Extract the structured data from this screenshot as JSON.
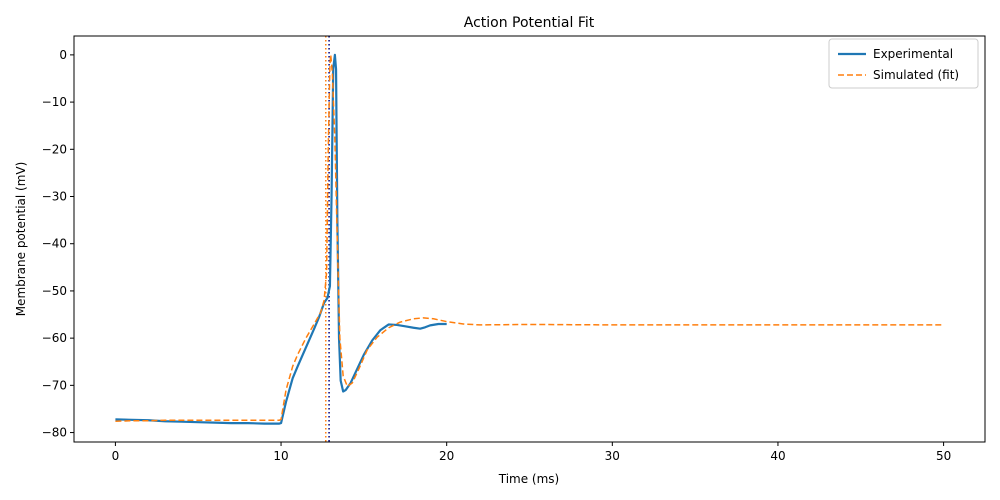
{
  "chart_data": {
    "type": "line",
    "title": "Action Potential Fit",
    "xlabel": "Time (ms)",
    "ylabel": "Membrane potential (mV)",
    "xlim": [
      -2.5,
      52.5
    ],
    "ylim": [
      -82,
      4
    ],
    "x_ticks": [
      0,
      10,
      20,
      30,
      40,
      50
    ],
    "y_ticks": [
      0,
      -10,
      -20,
      -30,
      -40,
      -50,
      -60,
      -70,
      -80
    ],
    "grid": false,
    "legend_position": "top-right",
    "series": [
      {
        "name": "Experimental",
        "color": "#1f77b4",
        "style": "solid",
        "points": [
          [
            0,
            -77.2
          ],
          [
            1,
            -77.3
          ],
          [
            2,
            -77.4
          ],
          [
            3,
            -77.6
          ],
          [
            4,
            -77.7
          ],
          [
            5,
            -77.8
          ],
          [
            6,
            -77.9
          ],
          [
            7,
            -78.0
          ],
          [
            8,
            -78.0
          ],
          [
            9,
            -78.1
          ],
          [
            9.9,
            -78.1
          ],
          [
            10,
            -78.0
          ],
          [
            10.3,
            -73.5
          ],
          [
            10.7,
            -68.5
          ],
          [
            11,
            -66.0
          ],
          [
            11.5,
            -62.0
          ],
          [
            12,
            -58.0
          ],
          [
            12.3,
            -55.5
          ],
          [
            12.6,
            -52.5
          ],
          [
            12.8,
            -51.5
          ],
          [
            12.95,
            -49.0
          ],
          [
            13.05,
            -30.0
          ],
          [
            13.15,
            -3.0
          ],
          [
            13.25,
            0.0
          ],
          [
            13.32,
            -3.0
          ],
          [
            13.4,
            -35.0
          ],
          [
            13.5,
            -60.0
          ],
          [
            13.6,
            -69.0
          ],
          [
            13.75,
            -71.3
          ],
          [
            13.9,
            -71.0
          ],
          [
            14.2,
            -69.5
          ],
          [
            14.6,
            -66.5
          ],
          [
            15,
            -63.5
          ],
          [
            15.5,
            -60.5
          ],
          [
            16,
            -58.3
          ],
          [
            16.5,
            -57.1
          ],
          [
            17,
            -57.2
          ],
          [
            17.5,
            -57.5
          ],
          [
            18,
            -57.8
          ],
          [
            18.4,
            -58.0
          ],
          [
            18.7,
            -57.7
          ],
          [
            19,
            -57.3
          ],
          [
            19.5,
            -57.0
          ],
          [
            20,
            -57.0
          ]
        ]
      },
      {
        "name": "Simulated (fit)",
        "color": "#ff7f0e",
        "style": "dashed",
        "points": [
          [
            0,
            -77.6
          ],
          [
            1,
            -77.5
          ],
          [
            2,
            -77.5
          ],
          [
            3,
            -77.4
          ],
          [
            4,
            -77.4
          ],
          [
            5,
            -77.4
          ],
          [
            6,
            -77.4
          ],
          [
            7,
            -77.4
          ],
          [
            8,
            -77.4
          ],
          [
            9,
            -77.4
          ],
          [
            9.9,
            -77.4
          ],
          [
            10,
            -77.2
          ],
          [
            10.3,
            -71.0
          ],
          [
            10.7,
            -66.0
          ],
          [
            11,
            -63.5
          ],
          [
            11.5,
            -60.0
          ],
          [
            12,
            -57.0
          ],
          [
            12.4,
            -54.5
          ],
          [
            12.6,
            -52.0
          ],
          [
            12.75,
            -46.0
          ],
          [
            12.85,
            -20.0
          ],
          [
            12.95,
            -2.0
          ],
          [
            13.0,
            0.0
          ],
          [
            13.1,
            -4.0
          ],
          [
            13.25,
            -18.0
          ],
          [
            13.4,
            -40.0
          ],
          [
            13.55,
            -60.0
          ],
          [
            13.75,
            -68.0
          ],
          [
            14.0,
            -70.2
          ],
          [
            14.3,
            -69.5
          ],
          [
            14.7,
            -66.5
          ],
          [
            15.2,
            -62.5
          ],
          [
            15.8,
            -59.8
          ],
          [
            16.5,
            -57.8
          ],
          [
            17.2,
            -56.6
          ],
          [
            18,
            -55.9
          ],
          [
            18.6,
            -55.7
          ],
          [
            19.2,
            -55.9
          ],
          [
            20,
            -56.5
          ],
          [
            21,
            -57.0
          ],
          [
            22,
            -57.2
          ],
          [
            25,
            -57.1
          ],
          [
            30,
            -57.2
          ],
          [
            35,
            -57.2
          ],
          [
            40,
            -57.2
          ],
          [
            45,
            -57.2
          ],
          [
            50,
            -57.2
          ]
        ]
      }
    ],
    "vlines": [
      {
        "x": 12.7,
        "color": "#ff7f0e",
        "style": "dotted"
      },
      {
        "x": 12.9,
        "color": "#000080",
        "style": "dotted"
      }
    ]
  }
}
